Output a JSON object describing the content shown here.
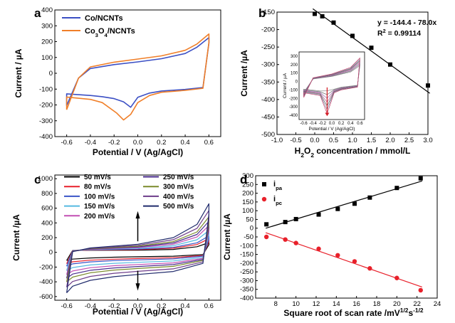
{
  "chart_data": [
    {
      "panel": "a",
      "type": "line",
      "xlabel": "Potential / V (Ag/AgCl)",
      "ylabel": "Current / µA",
      "xlim": [
        -0.7,
        0.7
      ],
      "ylim": [
        -400,
        400
      ],
      "xticks": [
        "-0.6",
        "-0.4",
        "-0.2",
        "0.0",
        "0.2",
        "0.4",
        "0.6"
      ],
      "yticks": [
        "400",
        "300",
        "200",
        "100",
        "0",
        "-100",
        "-200",
        "-300",
        "-400"
      ],
      "legend_position": "top-left",
      "series": [
        {
          "name": "Co/NCNTs",
          "color": "#3b4fc4",
          "upper": [
            [
              -0.6,
              -205
            ],
            [
              -0.5,
              -30
            ],
            [
              -0.4,
              30
            ],
            [
              -0.2,
              55
            ],
            [
              0.0,
              72
            ],
            [
              0.2,
              92
            ],
            [
              0.4,
              125
            ],
            [
              0.5,
              165
            ],
            [
              0.6,
              225
            ]
          ],
          "lower": [
            [
              0.6,
              190
            ],
            [
              0.55,
              -90
            ],
            [
              0.4,
              -102
            ],
            [
              0.2,
              -112
            ],
            [
              0.1,
              -125
            ],
            [
              0.0,
              -152
            ],
            [
              -0.06,
              -215
            ],
            [
              -0.12,
              -180
            ],
            [
              -0.2,
              -160
            ],
            [
              -0.3,
              -148
            ],
            [
              -0.4,
              -140
            ],
            [
              -0.6,
              -130
            ]
          ]
        },
        {
          "name": "Co3O4/NCNTs",
          "color": "#f07f29",
          "upper": [
            [
              -0.6,
              -230
            ],
            [
              -0.5,
              -30
            ],
            [
              -0.4,
              40
            ],
            [
              -0.2,
              70
            ],
            [
              0.0,
              90
            ],
            [
              0.2,
              110
            ],
            [
              0.4,
              145
            ],
            [
              0.5,
              185
            ],
            [
              0.6,
              248
            ]
          ],
          "lower": [
            [
              0.6,
              195
            ],
            [
              0.55,
              -95
            ],
            [
              0.4,
              -108
            ],
            [
              0.2,
              -120
            ],
            [
              0.1,
              -140
            ],
            [
              0.0,
              -185
            ],
            [
              -0.06,
              -260
            ],
            [
              -0.12,
              -295
            ],
            [
              -0.18,
              -250
            ],
            [
              -0.3,
              -185
            ],
            [
              -0.4,
              -165
            ],
            [
              -0.6,
              -150
            ]
          ]
        }
      ]
    },
    {
      "panel": "b",
      "type": "scatter",
      "xlabel": "H2O2 concentration / mmol/L",
      "xlabel_main": "H",
      "xlabel_sub": "2",
      "xlabel_mid": "O",
      "xlabel_sub2": "2",
      "xlabel_rest": " concentration / mmol/L",
      "ylabel": "Current /µA",
      "xlim": [
        -1.0,
        3.0
      ],
      "ylim": [
        -500,
        -150
      ],
      "xticks": [
        "-1.0",
        "-0.5",
        "0.0",
        "0.5",
        "1.0",
        "1.5",
        "2.0",
        "2.5",
        "3.0"
      ],
      "yticks": [
        "-150",
        "-200",
        "-250",
        "-300",
        "-350",
        "-400",
        "-450",
        "-500"
      ],
      "x": [
        0.0,
        0.2,
        0.5,
        1.0,
        1.5,
        2.0,
        3.0
      ],
      "y": [
        -155,
        -162,
        -180,
        -218,
        -252,
        -300,
        -360
      ],
      "fit_line": {
        "slope": -78.0,
        "intercept": -144.4
      },
      "equation": "y = -144.4 - 78.0x",
      "r2_label": "R",
      "r2_sup": "2",
      "r2_value": " = 0.99114",
      "inset": {
        "xlabel": "Potential / V (Ag/AgCl)",
        "ylabel": "Current / µA",
        "xticks": [
          "-0.6",
          "-0.4",
          "-0.2",
          "0.0",
          "0.2",
          "0.4",
          "0.6"
        ],
        "yticks": [
          "300",
          "200",
          "100",
          "0",
          "-100",
          "-200",
          "-300",
          "-400"
        ]
      }
    },
    {
      "panel": "c",
      "type": "line",
      "xlabel": "Potential / V (Ag/AgCl)",
      "ylabel": "Current /µA",
      "xlim": [
        -0.7,
        0.7
      ],
      "ylim": [
        -650,
        1050
      ],
      "xticks": [
        "-0.6",
        "-0.4",
        "-0.2",
        "0.0",
        "0.2",
        "0.4",
        "0.6"
      ],
      "yticks": [
        "1000",
        "800",
        "600",
        "400",
        "200",
        "0",
        "-200",
        "-400",
        "-600"
      ],
      "legend_position": "top",
      "series": [
        {
          "name": "50 mV/s",
          "color": "#000000",
          "scale": 0.2
        },
        {
          "name": "80 mV/s",
          "color": "#e8202a",
          "scale": 0.28
        },
        {
          "name": "100 mV/s",
          "color": "#3a55c8",
          "scale": 0.34
        },
        {
          "name": "150 mV/s",
          "color": "#55b9e0",
          "scale": 0.45
        },
        {
          "name": "200 mV/s",
          "color": "#c24fb3",
          "scale": 0.55
        },
        {
          "name": "250 mV/s",
          "color": "#4b2d8f",
          "scale": 0.64
        },
        {
          "name": "300 mV/s",
          "color": "#7b8a2c",
          "scale": 0.73
        },
        {
          "name": "400 mV/s",
          "color": "#6d3c8a",
          "scale": 0.86
        },
        {
          "name": "500 mV/s",
          "color": "#1f2a6b",
          "scale": 1.0
        }
      ]
    },
    {
      "panel": "d",
      "type": "scatter",
      "xlabel_main": "Square root of scan rate /mV",
      "xlabel_sup1": "1/2",
      "xlabel_mid": "s",
      "xlabel_sup2": "-1/2",
      "ylabel": "Current /µA",
      "xlim": [
        6,
        24
      ],
      "ylim": [
        -400,
        300
      ],
      "xticks": [
        "8",
        "10",
        "12",
        "14",
        "16",
        "18",
        "20",
        "22",
        "24"
      ],
      "yticks": [
        "300",
        "250",
        "200",
        "150",
        "100",
        "50",
        "0",
        "-50",
        "-100",
        "-150",
        "-200",
        "-250",
        "-300",
        "-350",
        "-400"
      ],
      "legend_position": "top-left",
      "series": [
        {
          "name": "ipa",
          "label_main": "i",
          "label_sub": "pa",
          "color": "#000000",
          "marker": "square",
          "x": [
            7.07,
            8.94,
            10.0,
            12.25,
            14.14,
            15.81,
            17.32,
            20.0,
            22.36
          ],
          "y": [
            22,
            35,
            52,
            78,
            110,
            140,
            175,
            230,
            285
          ]
        },
        {
          "name": "ipc",
          "label_main": "i",
          "label_sub": "pc",
          "color": "#e8202a",
          "marker": "circle",
          "x": [
            7.07,
            8.94,
            10.0,
            12.25,
            14.14,
            15.81,
            17.32,
            20.0,
            22.36
          ],
          "y": [
            -50,
            -65,
            -85,
            -118,
            -155,
            -190,
            -230,
            -285,
            -355
          ]
        }
      ]
    }
  ]
}
